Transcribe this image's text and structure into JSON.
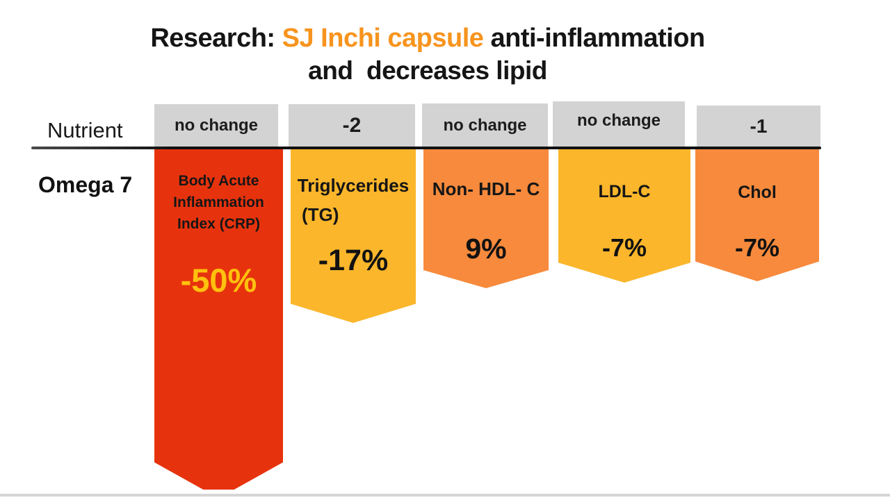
{
  "title": {
    "line1_prefix": "Research: ",
    "line1_highlight": "SJ Inchi capsule",
    "line1_suffix": " anti-inflammation",
    "line2": "and  decreases lipid",
    "highlight_color": "#F7941E"
  },
  "header": {
    "nutrient_label": "Nutrient",
    "row_label": "Omega 7",
    "cells": [
      "no change",
      "-2",
      "no change",
      "no change",
      "-1"
    ]
  },
  "banners": [
    {
      "name_lines": [
        "Body Acute",
        "Inflammation",
        "Index (CRP)"
      ],
      "value": "-50%",
      "bg": "#E7330D",
      "value_color": "#FFC10E"
    },
    {
      "name_lines": [
        "Triglycerides",
        "(TG)"
      ],
      "value": "-17%",
      "bg": "#FBB62B",
      "value_color": "#121212"
    },
    {
      "name_lines": [
        "Non- HDL- C"
      ],
      "value": "9%",
      "bg": "#F78A3C",
      "value_color": "#121212"
    },
    {
      "name_lines": [
        "LDL-C"
      ],
      "value": "-7%",
      "bg": "#FBB62B",
      "value_color": "#121212"
    },
    {
      "name_lines": [
        "Chol"
      ],
      "value": "-7%",
      "bg": "#F78A3C",
      "value_color": "#121212"
    }
  ],
  "chart_data": {
    "type": "bar",
    "title": "Research: SJ Inchi capsule anti-inflammation and decreases lipid",
    "row_label": "Omega 7",
    "xlabel": "Nutrient",
    "categories": [
      "Body Acute Inflammation Index (CRP)",
      "Triglycerides (TG)",
      "Non- HDL- C",
      "LDL-C",
      "Chol"
    ],
    "column_headers": [
      "no change",
      "-2",
      "no change",
      "no change",
      "-1"
    ],
    "values": [
      -50,
      -17,
      9,
      -7,
      -7
    ],
    "value_labels": [
      "-50%",
      "-17%",
      "9%",
      "-7%",
      "-7%"
    ],
    "bar_colors": [
      "#E7330D",
      "#FBB62B",
      "#F78A3C",
      "#FBB62B",
      "#F78A3C"
    ],
    "legend": false,
    "grid": false
  }
}
